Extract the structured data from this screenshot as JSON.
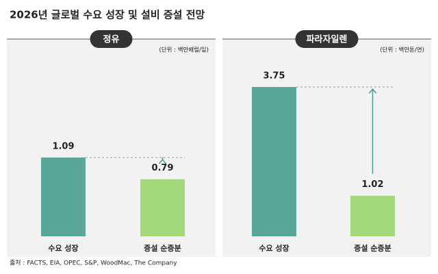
{
  "title": "2026년 글로벌 수요 성장 및 설비 증설 전망",
  "source": "출처 : FACTS, EIA, OPEC, S&P, WoodMac, The Company",
  "chart_data": [
    {
      "type": "bar",
      "title": "정유",
      "subtitle": "(단위 : 백만배럴/일)",
      "categories": [
        "수요 성장",
        "증설 순증분"
      ],
      "values": [
        1.09,
        0.79
      ],
      "colors": [
        "#5aa79a",
        "#a4d97b"
      ]
    },
    {
      "type": "bar",
      "title": "파라자일렌",
      "subtitle": "(단위 : 백만톤/연)",
      "categories": [
        "수요 성장",
        "증설 순증분"
      ],
      "values": [
        3.75,
        1.02
      ],
      "colors": [
        "#5aa79a",
        "#a4d97b"
      ]
    }
  ]
}
